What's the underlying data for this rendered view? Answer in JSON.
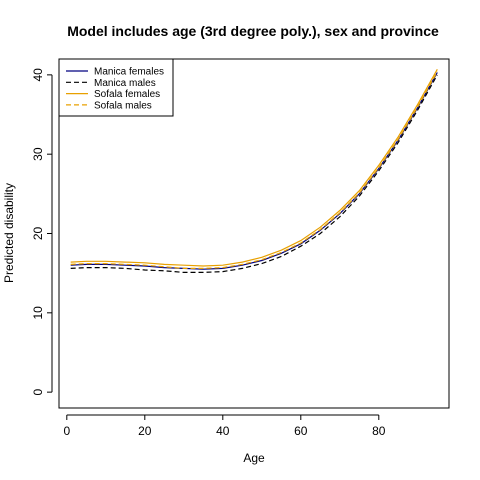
{
  "chart_data": {
    "type": "line",
    "title": "Model includes age (3rd degree poly.), sex and province",
    "xlabel": "Age",
    "ylabel": "Predicted disability",
    "xlim": [
      -2,
      98
    ],
    "ylim": [
      -2,
      42
    ],
    "xticks": [
      0,
      20,
      40,
      60,
      80
    ],
    "yticks": [
      0,
      10,
      20,
      30,
      40
    ],
    "grid": false,
    "legend_position": "top-left",
    "x": [
      1,
      5,
      10,
      15,
      20,
      25,
      30,
      35,
      40,
      45,
      50,
      55,
      60,
      65,
      70,
      75,
      80,
      85,
      90,
      95
    ],
    "series": [
      {
        "name": "Manica females",
        "color": "#000080",
        "dash": "solid",
        "values": [
          16.0,
          16.1,
          16.1,
          16.0,
          15.9,
          15.7,
          15.6,
          15.5,
          15.6,
          16.0,
          16.6,
          17.5,
          18.7,
          20.4,
          22.5,
          25.0,
          28.2,
          31.8,
          35.9,
          40.3
        ]
      },
      {
        "name": "Manica males",
        "color": "#000000",
        "dash": "dashed",
        "values": [
          15.6,
          15.7,
          15.7,
          15.6,
          15.4,
          15.3,
          15.1,
          15.1,
          15.2,
          15.6,
          16.2,
          17.1,
          18.4,
          20.0,
          22.1,
          24.7,
          27.9,
          31.5,
          35.6,
          40.0
        ]
      },
      {
        "name": "Sofala females",
        "color": "#e8a000",
        "dash": "solid",
        "values": [
          16.4,
          16.5,
          16.5,
          16.4,
          16.3,
          16.1,
          16.0,
          15.9,
          16.0,
          16.4,
          17.0,
          17.9,
          19.1,
          20.8,
          22.9,
          25.4,
          28.6,
          32.2,
          36.3,
          40.7
        ]
      },
      {
        "name": "Sofala males",
        "color": "#e8a000",
        "dash": "dashed",
        "values": [
          16.1,
          16.2,
          16.2,
          16.1,
          16.0,
          15.8,
          15.6,
          15.6,
          15.7,
          16.1,
          16.7,
          17.6,
          18.8,
          20.5,
          22.6,
          25.1,
          28.3,
          31.9,
          36.0,
          40.4
        ]
      }
    ]
  }
}
